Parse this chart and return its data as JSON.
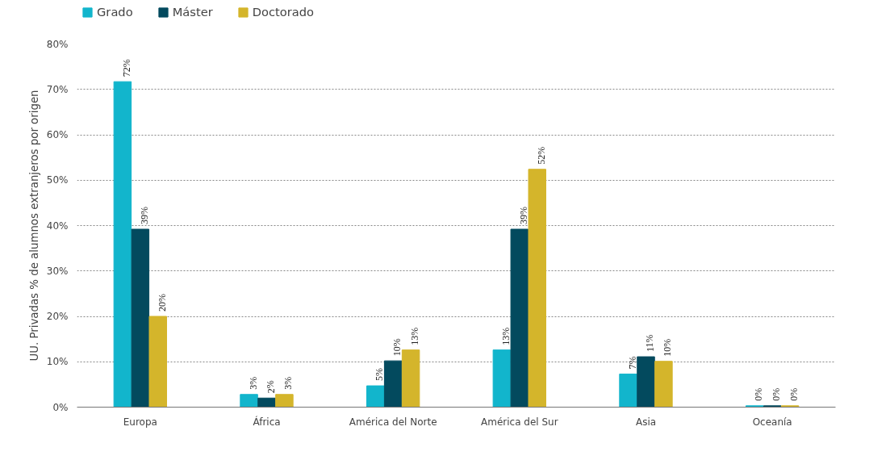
{
  "chart_data": {
    "type": "bar",
    "ylabel": "UU. Privadas % de alumnos extranjeros por origen",
    "categories": [
      "Europa",
      "África",
      "América del Norte",
      "América del Sur",
      "Asia",
      "Oceanía"
    ],
    "series": [
      {
        "name": "Grado",
        "color": "#12b5cc",
        "values": [
          71.7,
          2.8,
          4.7,
          12.6,
          7.3,
          0.3
        ],
        "value_labels": [
          "72%",
          "3%",
          "5%",
          "13%",
          "7%",
          "0%"
        ]
      },
      {
        "name": "Máster",
        "color": "#034a5e",
        "values": [
          39.2,
          2.0,
          10.2,
          39.2,
          11.1,
          0.3
        ],
        "value_labels": [
          "39%",
          "2%",
          "10%",
          "39%",
          "11%",
          "0%"
        ]
      },
      {
        "name": "Doctorado",
        "color": "#d4b52b",
        "values": [
          20.0,
          2.8,
          12.6,
          52.4,
          10.1,
          0.3
        ],
        "value_labels": [
          "20%",
          "3%",
          "13%",
          "52%",
          "10%",
          "0%"
        ]
      }
    ],
    "ylim": [
      0,
      80
    ],
    "yticks": [
      {
        "value": 0,
        "label": "0%"
      },
      {
        "value": 10,
        "label": "10%"
      },
      {
        "value": 20,
        "label": "20%"
      },
      {
        "value": 30,
        "label": "30%"
      },
      {
        "value": 40,
        "label": "40%"
      },
      {
        "value": 50,
        "label": "50%"
      },
      {
        "value": 60,
        "label": "60%"
      },
      {
        "value": 70,
        "label": "70%"
      },
      {
        "value": 80,
        "label": "80%"
      }
    ],
    "grid": "y",
    "legend": "top left"
  }
}
